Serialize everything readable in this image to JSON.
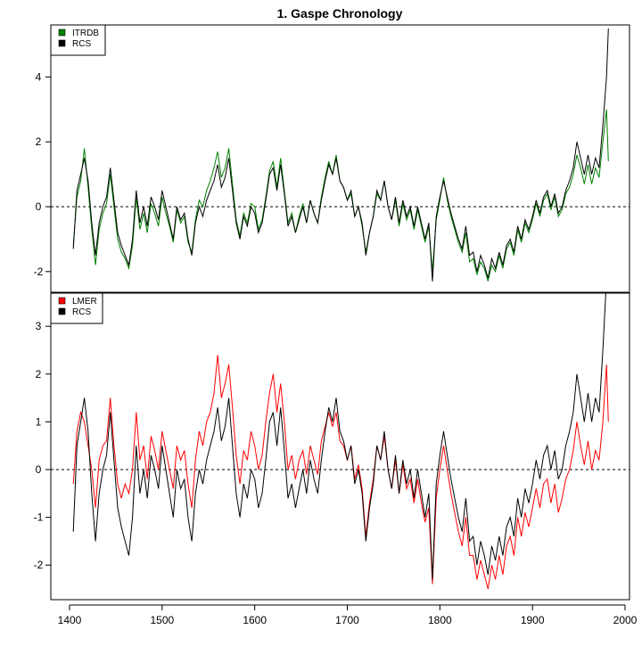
{
  "chart_data": {
    "type": "line",
    "title": "1. Gaspe Chronology",
    "xlabel": "",
    "x_ticks": [
      1400,
      1500,
      1600,
      1700,
      1800,
      1900,
      2000
    ],
    "xlim": [
      1380,
      2005
    ],
    "years": [
      1404,
      1408,
      1412,
      1416,
      1420,
      1424,
      1428,
      1432,
      1436,
      1440,
      1444,
      1448,
      1452,
      1456,
      1460,
      1464,
      1468,
      1472,
      1476,
      1480,
      1484,
      1488,
      1492,
      1496,
      1500,
      1504,
      1508,
      1512,
      1516,
      1520,
      1524,
      1528,
      1532,
      1536,
      1540,
      1544,
      1548,
      1552,
      1556,
      1560,
      1564,
      1568,
      1572,
      1576,
      1580,
      1584,
      1588,
      1592,
      1596,
      1600,
      1604,
      1608,
      1612,
      1616,
      1620,
      1624,
      1628,
      1632,
      1636,
      1640,
      1644,
      1648,
      1652,
      1656,
      1660,
      1664,
      1668,
      1672,
      1676,
      1680,
      1684,
      1688,
      1692,
      1696,
      1700,
      1704,
      1708,
      1712,
      1716,
      1720,
      1724,
      1728,
      1732,
      1736,
      1740,
      1744,
      1748,
      1752,
      1756,
      1760,
      1764,
      1768,
      1772,
      1776,
      1780,
      1784,
      1788,
      1792,
      1796,
      1800,
      1804,
      1808,
      1812,
      1816,
      1820,
      1824,
      1828,
      1832,
      1836,
      1840,
      1844,
      1848,
      1852,
      1856,
      1860,
      1864,
      1868,
      1872,
      1876,
      1880,
      1884,
      1888,
      1892,
      1896,
      1900,
      1904,
      1908,
      1912,
      1916,
      1920,
      1924,
      1928,
      1932,
      1936,
      1940,
      1944,
      1948,
      1952,
      1956,
      1960,
      1964,
      1968,
      1972,
      1976,
      1980,
      1982
    ],
    "panels": [
      {
        "ylim": [
          -2.6,
          5.5
        ],
        "y_ticks": [
          -2,
          0,
          2,
          4
        ],
        "reference_line": 0,
        "legend": {
          "placement": "top-left",
          "entries": [
            {
              "label": "ITRDB",
              "color": "#008000"
            },
            {
              "label": "RCS",
              "color": "#000000"
            }
          ]
        },
        "series": [
          {
            "name": "ITRDB",
            "color": "#008000",
            "values": [
              -1.2,
              0.3,
              0.8,
              1.8,
              0.6,
              -0.7,
              -1.8,
              -0.7,
              -0.2,
              0.1,
              1.0,
              0.0,
              -1.0,
              -1.4,
              -1.6,
              -1.9,
              -1.2,
              0.3,
              -0.7,
              -0.2,
              -0.8,
              0.1,
              -0.2,
              -0.6,
              0.3,
              -0.2,
              -0.6,
              -1.1,
              -0.1,
              -0.5,
              -0.3,
              -1.1,
              -1.4,
              -0.4,
              0.2,
              0.0,
              0.5,
              0.8,
              1.2,
              1.7,
              0.9,
              1.2,
              1.8,
              0.7,
              -0.4,
              -0.9,
              -0.2,
              -0.5,
              0.1,
              0.0,
              -0.7,
              -0.4,
              0.3,
              1.1,
              1.4,
              0.6,
              1.5,
              0.5,
              -0.5,
              -0.2,
              -0.8,
              -0.3,
              0.1,
              -0.5,
              0.2,
              -0.2,
              -0.5,
              0.3,
              0.9,
              1.4,
              1.0,
              1.6,
              0.8,
              0.6,
              0.2,
              0.4,
              -0.3,
              0.0,
              -0.6,
              -1.4,
              -0.8,
              -0.3,
              0.4,
              0.2,
              0.8,
              0.0,
              -0.4,
              0.2,
              -0.6,
              0.1,
              -0.4,
              -0.1,
              -0.7,
              -0.1,
              -0.6,
              -1.1,
              -0.6,
              -2.0,
              -0.4,
              0.2,
              0.9,
              0.2,
              -0.3,
              -0.7,
              -1.1,
              -1.4,
              -0.8,
              -1.7,
              -1.6,
              -2.1,
              -1.7,
              -1.9,
              -2.3,
              -1.8,
              -2.0,
              -1.5,
              -1.9,
              -1.3,
              -1.1,
              -1.5,
              -0.7,
              -1.1,
              -0.5,
              -0.8,
              -0.4,
              0.1,
              -0.3,
              0.2,
              0.4,
              -0.1,
              0.3,
              -0.3,
              -0.1,
              0.4,
              0.6,
              1.0,
              1.6,
              1.2,
              0.7,
              1.3,
              0.7,
              1.2,
              0.9,
              2.0,
              3.0,
              1.4
            ]
          },
          {
            "name": "RCS",
            "color": "#000000",
            "values": [
              -1.3,
              0.5,
              1.0,
              1.5,
              0.8,
              -0.5,
              -1.5,
              -0.5,
              0.0,
              0.3,
              1.2,
              0.2,
              -0.8,
              -1.2,
              -1.5,
              -1.8,
              -1.0,
              0.5,
              -0.5,
              0.0,
              -0.6,
              0.3,
              0.0,
              -0.4,
              0.5,
              0.0,
              -0.5,
              -1.0,
              0.0,
              -0.4,
              -0.2,
              -1.0,
              -1.5,
              -0.5,
              0.0,
              -0.3,
              0.2,
              0.5,
              0.8,
              1.3,
              0.6,
              0.9,
              1.5,
              0.5,
              -0.5,
              -1.0,
              -0.3,
              -0.6,
              0.0,
              -0.2,
              -0.8,
              -0.5,
              0.2,
              1.0,
              1.2,
              0.5,
              1.3,
              0.4,
              -0.6,
              -0.3,
              -0.8,
              -0.4,
              0.0,
              -0.5,
              0.2,
              -0.2,
              -0.5,
              0.2,
              0.8,
              1.3,
              1.0,
              1.5,
              0.8,
              0.6,
              0.2,
              0.5,
              -0.3,
              0.0,
              -0.5,
              -1.5,
              -0.8,
              -0.3,
              0.5,
              0.2,
              0.8,
              0.0,
              -0.4,
              0.3,
              -0.5,
              0.2,
              -0.3,
              0.0,
              -0.6,
              0.0,
              -0.5,
              -1.0,
              -0.5,
              -2.3,
              -0.3,
              0.3,
              0.8,
              0.3,
              -0.2,
              -0.6,
              -1.0,
              -1.3,
              -0.6,
              -1.5,
              -1.4,
              -2.0,
              -1.5,
              -1.8,
              -2.2,
              -1.6,
              -1.9,
              -1.4,
              -1.8,
              -1.2,
              -1.0,
              -1.4,
              -0.6,
              -1.0,
              -0.4,
              -0.7,
              -0.3,
              0.2,
              -0.2,
              0.3,
              0.5,
              0.0,
              0.4,
              -0.2,
              0.0,
              0.5,
              0.8,
              1.2,
              2.0,
              1.5,
              1.0,
              1.6,
              1.0,
              1.5,
              1.2,
              2.5,
              4.0,
              5.5
            ]
          }
        ]
      },
      {
        "ylim": [
          -2.8,
          3.6
        ],
        "y_ticks": [
          -2,
          -1,
          0,
          1,
          2,
          3
        ],
        "reference_line": 0,
        "legend": {
          "placement": "top-left",
          "entries": [
            {
              "label": "LMER",
              "color": "#ff0000"
            },
            {
              "label": "RCS",
              "color": "#000000"
            }
          ]
        },
        "series": [
          {
            "name": "LMER",
            "color": "#ff0000",
            "values": [
              -0.3,
              0.8,
              1.2,
              1.0,
              0.5,
              0.0,
              -0.8,
              0.2,
              0.5,
              0.6,
              1.5,
              0.5,
              -0.3,
              -0.6,
              -0.3,
              -0.5,
              0.0,
              1.2,
              0.2,
              0.5,
              -0.2,
              0.7,
              0.4,
              0.0,
              0.8,
              0.4,
              0.0,
              -0.4,
              0.5,
              0.2,
              0.4,
              -0.3,
              -0.8,
              0.2,
              0.8,
              0.5,
              1.0,
              1.2,
              1.6,
              2.4,
              1.5,
              1.8,
              2.2,
              1.3,
              0.3,
              -0.3,
              0.4,
              0.2,
              0.8,
              0.5,
              0.0,
              0.3,
              1.0,
              1.6,
              2.0,
              1.2,
              1.8,
              1.0,
              0.0,
              0.3,
              -0.2,
              0.2,
              0.4,
              -0.1,
              0.5,
              0.2,
              -0.1,
              0.6,
              0.9,
              1.2,
              0.9,
              1.2,
              0.6,
              0.5,
              0.2,
              0.5,
              -0.2,
              0.1,
              -0.4,
              -1.4,
              -0.7,
              -0.2,
              0.5,
              0.2,
              0.7,
              0.0,
              -0.4,
              0.2,
              -0.5,
              0.1,
              -0.4,
              -0.2,
              -0.7,
              -0.2,
              -0.7,
              -1.1,
              -0.8,
              -2.4,
              -0.6,
              0.0,
              0.5,
              0.0,
              -0.5,
              -0.9,
              -1.3,
              -1.6,
              -1.0,
              -1.8,
              -1.8,
              -2.3,
              -1.9,
              -2.2,
              -2.5,
              -2.0,
              -2.3,
              -1.8,
              -2.2,
              -1.6,
              -1.4,
              -1.8,
              -1.0,
              -1.4,
              -0.9,
              -1.2,
              -0.8,
              -0.4,
              -0.8,
              -0.3,
              -0.2,
              -0.7,
              -0.3,
              -0.9,
              -0.6,
              -0.2,
              0.0,
              0.4,
              1.0,
              0.5,
              0.1,
              0.6,
              0.0,
              0.4,
              0.2,
              1.0,
              2.2,
              1.0
            ]
          },
          {
            "name": "RCS",
            "color": "#000000",
            "values": [
              -1.3,
              0.5,
              1.0,
              1.5,
              0.8,
              -0.5,
              -1.5,
              -0.5,
              0.0,
              0.3,
              1.2,
              0.2,
              -0.8,
              -1.2,
              -1.5,
              -1.8,
              -1.0,
              0.5,
              -0.5,
              0.0,
              -0.6,
              0.3,
              0.0,
              -0.4,
              0.5,
              0.0,
              -0.5,
              -1.0,
              0.0,
              -0.4,
              -0.2,
              -1.0,
              -1.5,
              -0.5,
              0.0,
              -0.3,
              0.2,
              0.5,
              0.8,
              1.3,
              0.6,
              0.9,
              1.5,
              0.5,
              -0.5,
              -1.0,
              -0.3,
              -0.6,
              0.0,
              -0.2,
              -0.8,
              -0.5,
              0.2,
              1.0,
              1.2,
              0.5,
              1.3,
              0.4,
              -0.6,
              -0.3,
              -0.8,
              -0.4,
              0.0,
              -0.5,
              0.2,
              -0.2,
              -0.5,
              0.2,
              0.8,
              1.3,
              1.0,
              1.5,
              0.8,
              0.6,
              0.2,
              0.5,
              -0.3,
              0.0,
              -0.5,
              -1.5,
              -0.8,
              -0.3,
              0.5,
              0.2,
              0.8,
              0.0,
              -0.4,
              0.3,
              -0.5,
              0.2,
              -0.3,
              0.0,
              -0.6,
              0.0,
              -0.5,
              -1.0,
              -0.5,
              -2.3,
              -0.3,
              0.3,
              0.8,
              0.3,
              -0.2,
              -0.6,
              -1.0,
              -1.3,
              -0.6,
              -1.5,
              -1.4,
              -2.0,
              -1.5,
              -1.8,
              -2.2,
              -1.6,
              -1.9,
              -1.4,
              -1.8,
              -1.2,
              -1.0,
              -1.4,
              -0.6,
              -1.0,
              -0.4,
              -0.7,
              -0.3,
              0.2,
              -0.2,
              0.3,
              0.5,
              0.0,
              0.4,
              -0.2,
              0.0,
              0.5,
              0.8,
              1.2,
              2.0,
              1.5,
              1.0,
              1.6,
              1.0,
              1.5,
              1.2,
              2.5,
              4.0,
              5.5
            ]
          }
        ]
      }
    ]
  }
}
